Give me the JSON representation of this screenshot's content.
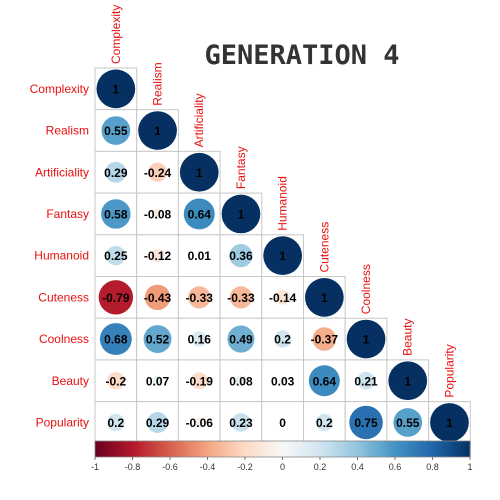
{
  "chart_data": {
    "type": "heatmap",
    "title": "GENERATION 4",
    "variables": [
      "Complexity",
      "Realism",
      "Artificiality",
      "Fantasy",
      "Humanoid",
      "Cuteness",
      "Coolness",
      "Beauty",
      "Popularity"
    ],
    "matrix_lower": [
      [
        1
      ],
      [
        0.55,
        1
      ],
      [
        0.29,
        -0.24,
        1
      ],
      [
        0.58,
        -0.08,
        0.64,
        1
      ],
      [
        0.25,
        -0.12,
        0.01,
        0.36,
        1
      ],
      [
        -0.79,
        -0.43,
        -0.33,
        -0.33,
        -0.14,
        1
      ],
      [
        0.68,
        0.52,
        0.16,
        0.49,
        0.2,
        -0.37,
        1
      ],
      [
        -0.2,
        0.07,
        -0.19,
        0.08,
        0.03,
        0.64,
        0.21,
        1
      ],
      [
        0.2,
        0.29,
        -0.06,
        0.23,
        0,
        0.2,
        0.75,
        0.55,
        1
      ]
    ],
    "colorbar": {
      "range": [
        -1,
        1
      ],
      "ticks": [
        "-1",
        "-0.8",
        "-0.6",
        "-0.4",
        "-0.2",
        "0",
        "0.2",
        "0.4",
        "0.6",
        "0.8",
        "1"
      ]
    },
    "colors": {
      "negative": "#67001f",
      "mid": "#f7f7f7",
      "positive": "#053061",
      "label": "#e8100f"
    }
  }
}
